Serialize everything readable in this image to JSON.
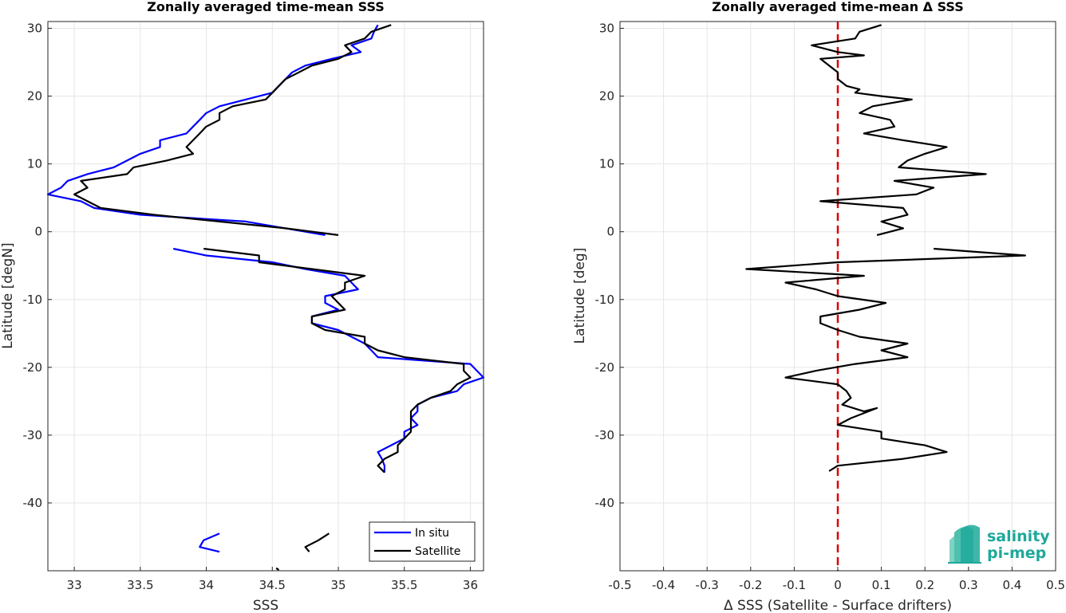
{
  "chart_data": [
    {
      "type": "line",
      "title": "Zonally averaged time-mean SSS",
      "xlabel": "SSS",
      "ylabel": "Latitude [degN]",
      "xlim": [
        32.8,
        36.1
      ],
      "ylim": [
        -50,
        31
      ],
      "xticks": [
        33,
        33.5,
        34,
        34.5,
        35,
        35.5,
        36
      ],
      "xtick_labels": [
        "33",
        "33.5",
        "34",
        "34.5",
        "35",
        "35.5",
        "36"
      ],
      "yticks": [
        -40,
        -30,
        -20,
        -10,
        0,
        10,
        20,
        30
      ],
      "ytick_labels": [
        "-40",
        "-30",
        "-20",
        "-10",
        "0",
        "10",
        "20",
        "30"
      ],
      "grid": true,
      "legend_position": "bottom-right",
      "series": [
        {
          "name": "In situ",
          "color": "#0000ff",
          "segments": [
            [
              [
                35.3,
                30.5
              ],
              [
                35.27,
                29.5
              ],
              [
                35.25,
                28.5
              ],
              [
                35.1,
                27.5
              ],
              [
                35.17,
                26.5
              ],
              [
                34.95,
                25.5
              ],
              [
                34.75,
                24.5
              ],
              [
                34.65,
                23.5
              ],
              [
                34.6,
                22.5
              ],
              [
                34.55,
                21.5
              ],
              [
                34.5,
                20.5
              ],
              [
                34.3,
                19.5
              ],
              [
                34.1,
                18.5
              ],
              [
                34.0,
                17.5
              ],
              [
                33.95,
                16.5
              ],
              [
                33.9,
                15.5
              ],
              [
                33.85,
                14.5
              ],
              [
                33.65,
                13.5
              ],
              [
                33.65,
                12.5
              ],
              [
                33.5,
                11.5
              ],
              [
                33.4,
                10.5
              ],
              [
                33.3,
                9.5
              ],
              [
                33.1,
                8.5
              ],
              [
                32.95,
                7.5
              ],
              [
                32.9,
                6.5
              ],
              [
                32.8,
                5.5
              ],
              [
                33.05,
                4.5
              ],
              [
                33.15,
                3.5
              ],
              [
                33.5,
                2.5
              ],
              [
                34.3,
                1.5
              ],
              [
                34.6,
                0.5
              ],
              [
                34.9,
                -0.5
              ]
            ],
            [
              [
                33.75,
                -2.5
              ],
              [
                34.0,
                -3.5
              ],
              [
                34.5,
                -4.5
              ],
              [
                34.75,
                -5.5
              ],
              [
                35.05,
                -6.5
              ],
              [
                35.1,
                -7.5
              ],
              [
                35.15,
                -8.5
              ],
              [
                34.9,
                -9.5
              ],
              [
                34.9,
                -10.5
              ],
              [
                35.0,
                -11.5
              ],
              [
                34.8,
                -12.5
              ],
              [
                34.8,
                -13.5
              ],
              [
                35.0,
                -14.5
              ],
              [
                35.1,
                -15.5
              ],
              [
                35.2,
                -16.5
              ],
              [
                35.25,
                -17.5
              ],
              [
                35.3,
                -18.5
              ],
              [
                36.0,
                -19.5
              ],
              [
                36.05,
                -20.5
              ],
              [
                36.1,
                -21.5
              ],
              [
                35.95,
                -22.5
              ],
              [
                35.9,
                -23.5
              ],
              [
                35.7,
                -24.5
              ],
              [
                35.6,
                -25.5
              ],
              [
                35.6,
                -26.5
              ],
              [
                35.55,
                -27.5
              ],
              [
                35.6,
                -28.5
              ],
              [
                35.5,
                -29.5
              ],
              [
                35.5,
                -30.5
              ],
              [
                35.4,
                -31.5
              ],
              [
                35.3,
                -32.5
              ],
              [
                35.33,
                -33.5
              ],
              [
                35.35,
                -34.5
              ],
              [
                35.35,
                -35.5
              ]
            ],
            [
              [
                34.1,
                -44.5
              ],
              [
                33.98,
                -45.5
              ],
              [
                33.95,
                -46.5
              ],
              [
                34.1,
                -47.2
              ]
            ]
          ]
        },
        {
          "name": "Satellite",
          "color": "#000000",
          "segments": [
            [
              [
                35.4,
                30.5
              ],
              [
                35.25,
                29.5
              ],
              [
                35.2,
                28.5
              ],
              [
                35.05,
                27.5
              ],
              [
                35.1,
                26.5
              ],
              [
                35.0,
                25.5
              ],
              [
                34.8,
                24.5
              ],
              [
                34.7,
                23.5
              ],
              [
                34.6,
                22.5
              ],
              [
                34.55,
                21.5
              ],
              [
                34.5,
                20.5
              ],
              [
                34.45,
                19.5
              ],
              [
                34.2,
                18.5
              ],
              [
                34.1,
                17.5
              ],
              [
                34.1,
                16.5
              ],
              [
                34.0,
                15.5
              ],
              [
                33.95,
                14.5
              ],
              [
                33.9,
                13.5
              ],
              [
                33.85,
                12.5
              ],
              [
                33.9,
                11.5
              ],
              [
                33.7,
                10.5
              ],
              [
                33.45,
                9.5
              ],
              [
                33.4,
                8.5
              ],
              [
                33.05,
                7.5
              ],
              [
                33.1,
                6.5
              ],
              [
                33.0,
                5.5
              ],
              [
                33.1,
                4.5
              ],
              [
                33.2,
                3.5
              ],
              [
                33.6,
                2.5
              ],
              [
                34.1,
                1.5
              ],
              [
                34.6,
                0.5
              ],
              [
                35.0,
                -0.5
              ]
            ],
            [
              [
                33.98,
                -2.5
              ],
              [
                34.4,
                -3.5
              ],
              [
                34.4,
                -4.5
              ],
              [
                34.8,
                -5.5
              ],
              [
                35.2,
                -6.5
              ],
              [
                35.05,
                -7.5
              ],
              [
                35.05,
                -8.5
              ],
              [
                34.95,
                -9.5
              ],
              [
                35.0,
                -10.5
              ],
              [
                35.05,
                -11.5
              ],
              [
                34.8,
                -12.5
              ],
              [
                34.8,
                -13.5
              ],
              [
                34.9,
                -14.5
              ],
              [
                35.2,
                -15.5
              ],
              [
                35.2,
                -16.5
              ],
              [
                35.3,
                -17.5
              ],
              [
                35.5,
                -18.5
              ],
              [
                35.95,
                -19.5
              ],
              [
                35.95,
                -20.5
              ],
              [
                36.0,
                -21.5
              ],
              [
                35.9,
                -22.5
              ],
              [
                35.85,
                -23.5
              ],
              [
                35.7,
                -24.5
              ],
              [
                35.6,
                -25.5
              ],
              [
                35.55,
                -26.5
              ],
              [
                35.55,
                -27.5
              ],
              [
                35.55,
                -28.5
              ],
              [
                35.55,
                -29.5
              ],
              [
                35.5,
                -30.5
              ],
              [
                35.45,
                -31.5
              ],
              [
                35.45,
                -32.5
              ],
              [
                35.35,
                -33.5
              ],
              [
                35.3,
                -34.5
              ],
              [
                35.35,
                -35.5
              ]
            ],
            [
              [
                34.93,
                -44.5
              ],
              [
                34.85,
                -45.5
              ],
              [
                34.75,
                -46.5
              ],
              [
                34.78,
                -47.2
              ]
            ],
            [
              [
                34.53,
                -49.6
              ],
              [
                34.55,
                -49.9
              ]
            ]
          ]
        }
      ]
    },
    {
      "type": "line",
      "title": "Zonally averaged time-mean Δ SSS",
      "xlabel": "Δ SSS (Satellite - Surface drifters)",
      "ylabel": "Latitude [deg]",
      "xlim": [
        -0.5,
        0.5
      ],
      "ylim": [
        -50,
        31
      ],
      "xticks": [
        -0.5,
        -0.4,
        -0.3,
        -0.2,
        -0.1,
        0,
        0.1,
        0.2,
        0.3,
        0.4,
        0.5
      ],
      "xtick_labels": [
        "-0.5",
        "-0.4",
        "-0.3",
        "-0.2",
        "-0.1",
        "0",
        "0.1",
        "0.2",
        "0.3",
        "0.4",
        "0.5"
      ],
      "yticks": [
        -40,
        -30,
        -20,
        -10,
        0,
        10,
        20,
        30
      ],
      "ytick_labels": [
        "-40",
        "-30",
        "-20",
        "-10",
        "0",
        "10",
        "20",
        "30"
      ],
      "grid": true,
      "reference_line": {
        "x": 0,
        "color": "#dd0000",
        "style": "dashed"
      },
      "series": [
        {
          "name": "",
          "color": "#000000",
          "segments": [
            [
              [
                0.1,
                30.5
              ],
              [
                0.05,
                29.5
              ],
              [
                0.04,
                28.5
              ],
              [
                -0.06,
                27.5
              ],
              [
                0.0,
                26.5
              ],
              [
                0.06,
                26.0
              ],
              [
                -0.04,
                25.5
              ],
              [
                -0.02,
                24.5
              ],
              [
                0.0,
                23.5
              ],
              [
                0.0,
                22.5
              ],
              [
                0.02,
                21.5
              ],
              [
                0.05,
                21.0
              ],
              [
                0.04,
                20.5
              ],
              [
                0.1,
                20.0
              ],
              [
                0.17,
                19.5
              ],
              [
                0.08,
                18.5
              ],
              [
                0.05,
                17.5
              ],
              [
                0.12,
                16.5
              ],
              [
                0.13,
                15.5
              ],
              [
                0.06,
                14.5
              ],
              [
                0.15,
                13.5
              ],
              [
                0.25,
                12.5
              ],
              [
                0.2,
                11.5
              ],
              [
                0.16,
                10.5
              ],
              [
                0.14,
                9.5
              ],
              [
                0.34,
                8.5
              ],
              [
                0.13,
                7.5
              ],
              [
                0.22,
                6.5
              ],
              [
                0.18,
                5.5
              ],
              [
                -0.04,
                4.5
              ],
              [
                0.15,
                3.5
              ],
              [
                0.16,
                2.5
              ],
              [
                0.1,
                1.5
              ],
              [
                0.15,
                0.5
              ],
              [
                0.09,
                -0.5
              ]
            ],
            [
              [
                0.22,
                -2.5
              ],
              [
                0.43,
                -3.5
              ],
              [
                0.0,
                -4.5
              ],
              [
                -0.21,
                -5.5
              ],
              [
                0.06,
                -6.5
              ],
              [
                -0.12,
                -7.5
              ],
              [
                -0.05,
                -8.5
              ],
              [
                0.0,
                -9.5
              ],
              [
                0.11,
                -10.5
              ],
              [
                0.05,
                -11.5
              ],
              [
                -0.04,
                -12.5
              ],
              [
                -0.04,
                -13.5
              ],
              [
                0.0,
                -14.5
              ],
              [
                0.05,
                -15.5
              ],
              [
                0.16,
                -16.5
              ],
              [
                0.1,
                -17.5
              ],
              [
                0.16,
                -18.5
              ],
              [
                0.04,
                -19.5
              ],
              [
                -0.05,
                -20.5
              ],
              [
                -0.12,
                -21.5
              ],
              [
                0.0,
                -22.5
              ],
              [
                0.02,
                -23.5
              ],
              [
                0.03,
                -24.5
              ],
              [
                0.01,
                -25.5
              ],
              [
                0.06,
                -26.5
              ],
              [
                0.09,
                -26.0
              ],
              [
                0.03,
                -27.5
              ],
              [
                0.0,
                -28.5
              ],
              [
                0.1,
                -29.5
              ],
              [
                0.1,
                -30.5
              ],
              [
                0.2,
                -31.5
              ],
              [
                0.25,
                -32.5
              ],
              [
                0.15,
                -33.5
              ],
              [
                0.0,
                -34.5
              ],
              [
                -0.02,
                -35.3
              ]
            ]
          ]
        }
      ]
    }
  ],
  "logo": {
    "line1": "salinity",
    "line2": "pi-mep"
  }
}
